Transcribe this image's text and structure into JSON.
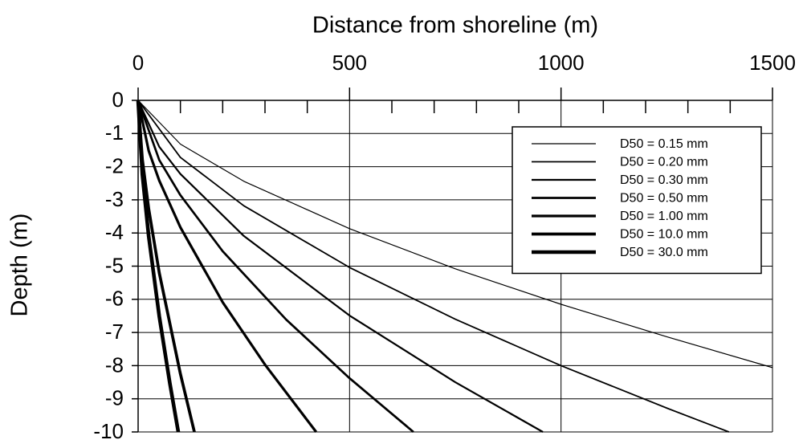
{
  "chart_data": {
    "type": "line",
    "xlabel": "Distance from shoreline (m)",
    "ylabel": "Depth (m)",
    "xlim": [
      0,
      1500
    ],
    "xticks": [
      0,
      500,
      1000,
      1500
    ],
    "xminor_ticks": [
      100,
      200,
      300,
      400,
      600,
      700,
      800,
      900,
      1100,
      1200,
      1300,
      1400
    ],
    "ylim": [
      -10,
      0
    ],
    "yticks": [
      0,
      -1,
      -2,
      -3,
      -4,
      -5,
      -6,
      -7,
      -8,
      -9,
      -10
    ],
    "grid": true,
    "legend": "upper right",
    "x_axis_position": "top",
    "series": [
      {
        "name": "D50 = 0.15 mm",
        "color": "#000000",
        "line_width": 1.2,
        "x": [
          0,
          100,
          250,
          500,
          750,
          1000,
          1250,
          1500
        ],
        "values": [
          0,
          -1.32,
          -2.44,
          -3.87,
          -5.08,
          -6.15,
          -7.13,
          -8.06
        ]
      },
      {
        "name": "D50 = 0.20 mm",
        "color": "#000000",
        "line_width": 1.8,
        "x": [
          0,
          100,
          250,
          500,
          750,
          1000,
          1250,
          1397
        ],
        "values": [
          0,
          -1.72,
          -3.18,
          -5.04,
          -6.6,
          -8.0,
          -9.28,
          -10
        ]
      },
      {
        "name": "D50 = 0.30 mm",
        "color": "#000000",
        "line_width": 2.2,
        "x": [
          0,
          50,
          100,
          250,
          500,
          750,
          957
        ],
        "values": [
          0,
          -1.4,
          -2.22,
          -4.09,
          -6.49,
          -8.5,
          -10
        ]
      },
      {
        "name": "D50 = 0.50 mm",
        "color": "#000000",
        "line_width": 2.7,
        "x": [
          0,
          50,
          100,
          200,
          350,
          500,
          651
        ],
        "values": [
          0,
          -1.8,
          -2.86,
          -4.55,
          -6.61,
          -8.38,
          -10
        ]
      },
      {
        "name": "D50 = 1.00 mm",
        "color": "#000000",
        "line_width": 3.2,
        "x": [
          0,
          25,
          50,
          100,
          200,
          300,
          421
        ],
        "values": [
          0,
          -1.52,
          -2.42,
          -3.83,
          -6.09,
          -7.97,
          -10
        ]
      },
      {
        "name": "D50 = 10.0 mm",
        "color": "#000000",
        "line_width": 3.7,
        "x": [
          0,
          10,
          25,
          50,
          100,
          133
        ],
        "values": [
          0,
          -1.78,
          -3.27,
          -5.2,
          -8.25,
          -10
        ]
      },
      {
        "name": "D50 = 30.0 mm",
        "color": "#000000",
        "line_width": 4.6,
        "x": [
          0,
          10,
          25,
          50,
          75,
          95
        ],
        "values": [
          0,
          -2.23,
          -4.1,
          -6.51,
          -8.53,
          -10
        ]
      }
    ]
  }
}
